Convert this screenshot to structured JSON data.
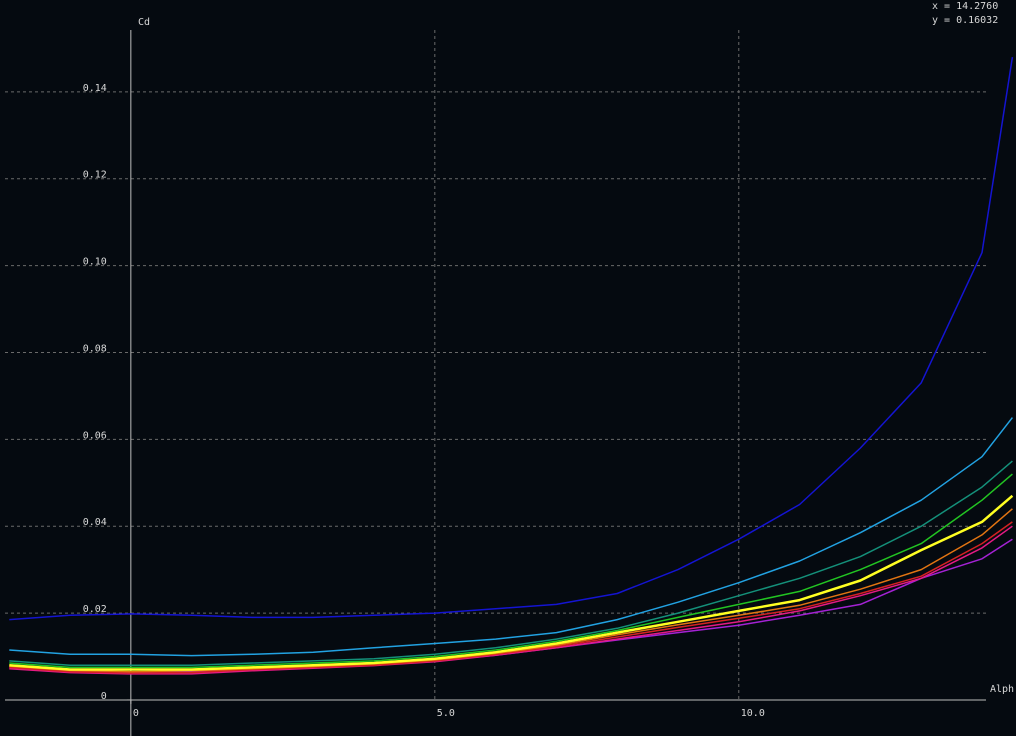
{
  "chart_data": {
    "type": "line",
    "y_label": "Cd",
    "x_label": "Alph",
    "cursor_x": "x =   14.2760",
    "cursor_y": "y =   0.16032",
    "x": [
      -2,
      -1,
      0,
      1,
      2,
      3,
      4,
      5,
      6,
      7,
      8,
      9,
      10,
      11,
      12,
      13,
      14,
      14.5
    ],
    "series": [
      {
        "color": "#1414d2",
        "values": [
          0.0185,
          0.0195,
          0.0198,
          0.0195,
          0.019,
          0.019,
          0.0195,
          0.02,
          0.021,
          0.022,
          0.0245,
          0.03,
          0.037,
          0.045,
          0.058,
          0.073,
          0.103,
          0.148
        ]
      },
      {
        "color": "#22a2e2",
        "values": [
          0.0115,
          0.0105,
          0.0105,
          0.0102,
          0.0105,
          0.011,
          0.012,
          0.013,
          0.014,
          0.0155,
          0.0185,
          0.0225,
          0.027,
          0.032,
          0.0385,
          0.046,
          0.056,
          0.065
        ]
      },
      {
        "color": "#14907a",
        "values": [
          0.009,
          0.008,
          0.008,
          0.008,
          0.0085,
          0.009,
          0.0095,
          0.0105,
          0.012,
          0.014,
          0.0165,
          0.02,
          0.024,
          0.028,
          0.033,
          0.04,
          0.049,
          0.055
        ]
      },
      {
        "color": "#22c422",
        "values": [
          0.0085,
          0.0075,
          0.0075,
          0.0075,
          0.008,
          0.0085,
          0.009,
          0.01,
          0.0115,
          0.0135,
          0.016,
          0.019,
          0.022,
          0.025,
          0.03,
          0.036,
          0.046,
          0.052
        ]
      },
      {
        "color": "#ffff22",
        "values": [
          0.008,
          0.007,
          0.007,
          0.007,
          0.0075,
          0.008,
          0.0085,
          0.0095,
          0.011,
          0.013,
          0.0155,
          0.018,
          0.0205,
          0.023,
          0.0275,
          0.0345,
          0.041,
          0.047
        ]
      },
      {
        "color": "#e27412",
        "values": [
          0.0078,
          0.0068,
          0.0065,
          0.0067,
          0.0072,
          0.0077,
          0.0083,
          0.0092,
          0.0107,
          0.0126,
          0.015,
          0.0173,
          0.0195,
          0.0218,
          0.0255,
          0.03,
          0.038,
          0.044
        ]
      },
      {
        "color": "#d42222",
        "values": [
          0.0075,
          0.0065,
          0.0062,
          0.0063,
          0.007,
          0.0075,
          0.008,
          0.009,
          0.0105,
          0.0123,
          0.0145,
          0.0167,
          0.0188,
          0.021,
          0.0245,
          0.0285,
          0.036,
          0.041
        ]
      },
      {
        "color": "#e41a84",
        "values": [
          0.0072,
          0.0063,
          0.006,
          0.006,
          0.0067,
          0.0073,
          0.0079,
          0.0088,
          0.0103,
          0.012,
          0.014,
          0.016,
          0.018,
          0.0205,
          0.024,
          0.028,
          0.035,
          0.04
        ]
      },
      {
        "color": "#a422d4",
        "values": [
          0.0075,
          0.0067,
          0.0064,
          0.0065,
          0.007,
          0.0075,
          0.008,
          0.009,
          0.0103,
          0.012,
          0.0138,
          0.0155,
          0.0172,
          0.0195,
          0.022,
          0.028,
          0.0325,
          0.037
        ]
      }
    ],
    "xlim": [
      -2.07,
      14.56
    ],
    "ylim": [
      -0.0083,
      0.16
    ],
    "xticks": [
      0,
      {
        "value": 5,
        "label": "5.0"
      },
      {
        "value": 10,
        "label": "10.0"
      }
    ],
    "yticks": [
      0,
      0.02,
      0.04,
      0.06,
      0.08,
      {
        "value": 0.1,
        "label": "0.10"
      },
      0.12,
      0.14
    ],
    "grid": true
  }
}
